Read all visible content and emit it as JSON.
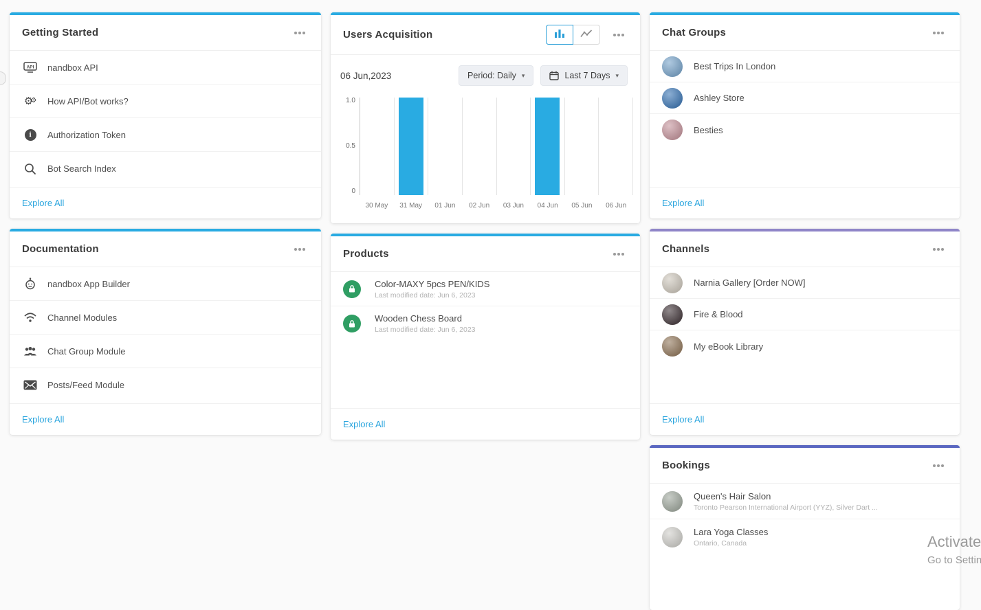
{
  "watermark": {
    "line1": "Activate W",
    "line2": "Go to Settin"
  },
  "getting_started": {
    "title": "Getting Started",
    "accent": "#29abe2",
    "items": [
      {
        "label": "nandbox API",
        "icon": "api-icon"
      },
      {
        "label": "How API/Bot works?",
        "icon": "gears-icon"
      },
      {
        "label": "Authorization Token",
        "icon": "info-icon"
      },
      {
        "label": "Bot Search Index",
        "icon": "search-icon"
      }
    ],
    "explore_label": "Explore All"
  },
  "users_acquisition": {
    "title": "Users Acquisition",
    "accent": "#29abe2",
    "date": "06 Jun,2023",
    "period_select": "Period: Daily",
    "range_select": "Last 7 Days",
    "chart_toggle": {
      "selected": "bar",
      "options": [
        "bar",
        "line"
      ]
    },
    "chart_data": {
      "type": "bar",
      "title": "Users Acquisition",
      "categories": [
        "30 May",
        "31 May",
        "01 Jun",
        "02 Jun",
        "03 Jun",
        "04 Jun",
        "05 Jun",
        "06 Jun"
      ],
      "values": [
        0,
        1,
        0,
        0,
        0,
        1,
        0,
        0
      ],
      "yticks": [
        "1.0",
        "0.5",
        "0"
      ],
      "ylim": [
        0,
        1
      ],
      "bar_color": "#29abe2",
      "grid": "vertical",
      "legend": "none",
      "xlabel": "",
      "ylabel": ""
    }
  },
  "chat_groups": {
    "title": "Chat Groups",
    "accent": "#29abe2",
    "items": [
      {
        "label": "Best Trips In London",
        "avatar_color": "#6f9ec7"
      },
      {
        "label": "Ashley Store",
        "avatar_color": "#2e6db0"
      },
      {
        "label": "Besties",
        "avatar_color": "#c28d96"
      }
    ],
    "explore_label": "Explore All"
  },
  "documentation": {
    "title": "Documentation",
    "accent": "#29abe2",
    "items": [
      {
        "label": "nandbox App Builder",
        "icon": "app-builder-icon"
      },
      {
        "label": "Channel Modules",
        "icon": "wifi-icon"
      },
      {
        "label": "Chat Group Module",
        "icon": "people-group-icon"
      },
      {
        "label": "Posts/Feed Module",
        "icon": "posts-feed-icon"
      }
    ],
    "explore_label": "Explore All"
  },
  "products": {
    "title": "Products",
    "accent": "#29abe2",
    "icon_color": "#2f9e63",
    "items": [
      {
        "label": "Color-MAXY 5pcs PEN/KIDS",
        "sub": "Last modified date: Jun 6, 2023",
        "icon": "lock-icon"
      },
      {
        "label": "Wooden Chess Board",
        "sub": "Last modified date: Jun 6, 2023",
        "icon": "lock-icon"
      }
    ],
    "explore_label": "Explore All"
  },
  "channels": {
    "title": "Channels",
    "accent": "#8f85c8",
    "items": [
      {
        "label": "Narnia Gallery [Order NOW]",
        "avatar_color": "#cbc4b8"
      },
      {
        "label": "Fire & Blood",
        "avatar_color": "#35282c"
      },
      {
        "label": "My eBook Library",
        "avatar_color": "#8a6e50"
      }
    ],
    "explore_label": "Explore All"
  },
  "bookings": {
    "title": "Bookings",
    "accent": "#5a67c1",
    "items": [
      {
        "label": "Queen's Hair Salon",
        "sub": "Toronto Pearson International Airport (YYZ), Silver Dart ...",
        "avatar_color": "#9aa398"
      },
      {
        "label": "Lara Yoga Classes",
        "sub": "Ontario, Canada",
        "avatar_color": "#cdccc7"
      }
    ]
  }
}
